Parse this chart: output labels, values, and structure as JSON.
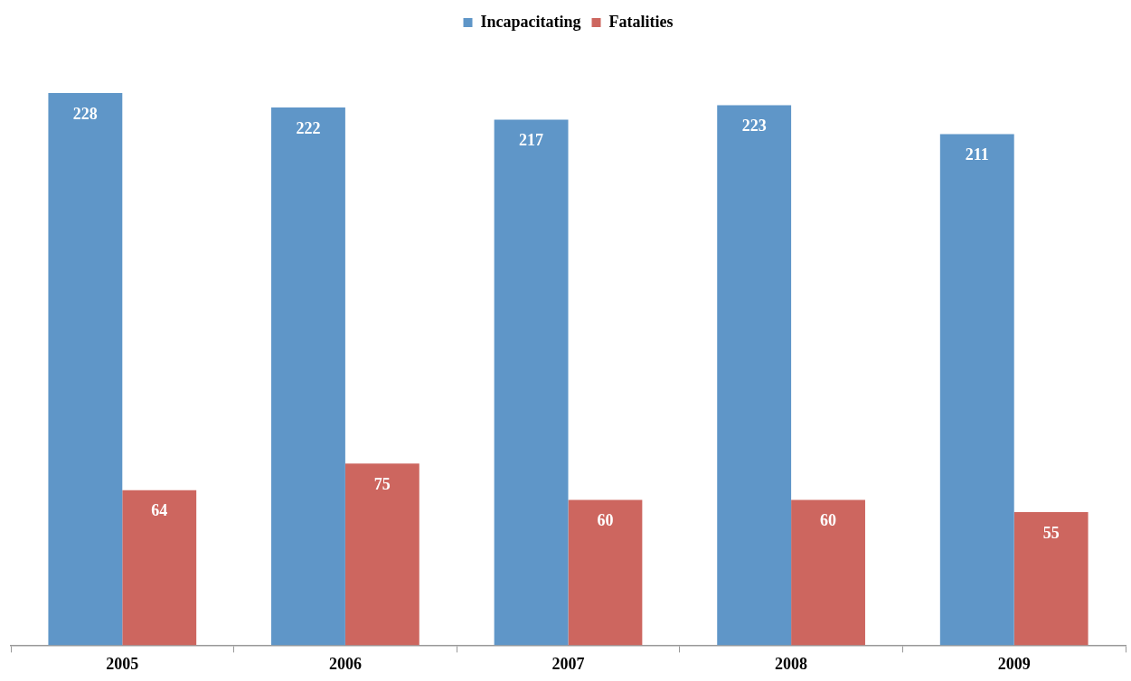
{
  "chart_data": {
    "type": "bar",
    "categories": [
      "2005",
      "2006",
      "2007",
      "2008",
      "2009"
    ],
    "series": [
      {
        "name": "Incapacitating",
        "color": "#5f96c8",
        "values": [
          228,
          222,
          217,
          223,
          211
        ]
      },
      {
        "name": "Fatalities",
        "color": "#cd665f",
        "values": [
          64,
          75,
          60,
          60,
          55
        ]
      }
    ],
    "data_labels": true,
    "legend": "top",
    "grid": false
  }
}
